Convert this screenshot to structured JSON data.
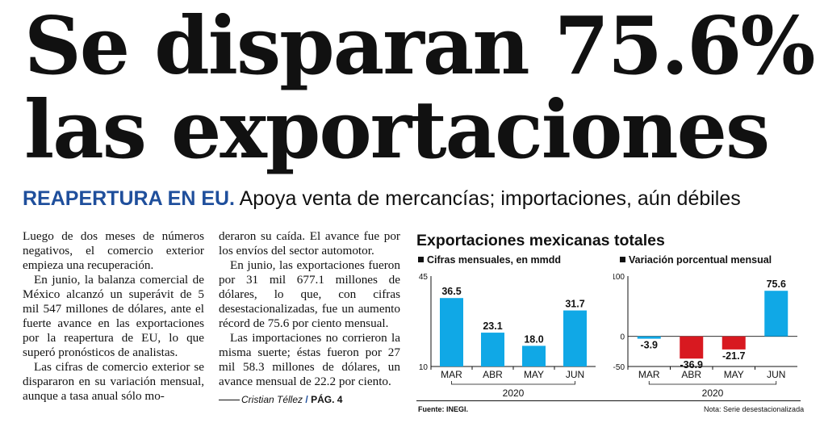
{
  "headline": {
    "line1": "Se disparan 75.6%",
    "line2": "las exportaciones"
  },
  "subhead": {
    "kicker": "REAPERTURA EN EU.",
    "dek": "Apoya venta de mercancías; importaciones, aún débiles"
  },
  "article": {
    "col1": [
      "Luego de dos meses de números negativos, el comercio exterior empieza una recuperación.",
      "En junio, la balanza comercial de México alcanzó un superávit de 5 mil 547 millones de dólares, ante el fuerte avance en las exportaciones por la reapertura de EU, lo que superó pronósticos de analistas.",
      "Las cifras de comercio exterior se dispararon en su variación mensual, aunque a tasa anual sólo mo-"
    ],
    "col2": [
      "deraron su caída. El avance fue por los envíos del sector automotor.",
      "En junio, las exportaciones fueron por 31 mil 677.1 millones de dólares, lo que, con cifras desestacionalizadas, fue un aumento récord de 75.6 por ciento mensual.",
      "Las importaciones no corrieron la misma suerte; éstas fueron por 27 mil 58.3 millones de dólares, un avance mensual de 22.2 por ciento."
    ],
    "author": "Cristian Téllez",
    "slash": "/",
    "page_ref": "PÁG. 4"
  },
  "graphic": {
    "title": "Exportaciones mexicanas totales",
    "source": "Fuente: INEGI.",
    "note": "Nota: Serie desestacionalizada"
  },
  "colors": {
    "bar_blue": "#10a8e6",
    "bar_red": "#d81920",
    "kicker_blue": "#1f4f9c"
  },
  "chart_data": [
    {
      "type": "bar",
      "title": "Cifras mensuales, en mmdd",
      "categories": [
        "MAR",
        "ABR",
        "MAY",
        "JUN"
      ],
      "values": [
        36.5,
        23.1,
        18.0,
        31.7
      ],
      "value_labels": [
        "36.5",
        "23.1",
        "18.0",
        "31.7"
      ],
      "ylim": [
        10,
        45
      ],
      "yticks": [
        "45",
        "10"
      ],
      "period_label": "2020",
      "color": "#10a8e6"
    },
    {
      "type": "bar",
      "title": "Variación porcentual mensual",
      "categories": [
        "MAR",
        "ABR",
        "MAY",
        "JUN"
      ],
      "values": [
        -3.9,
        -36.9,
        -21.7,
        75.6
      ],
      "value_labels": [
        "-3.9",
        "-36.9",
        "-21.7",
        "75.6"
      ],
      "ylim": [
        -50,
        100
      ],
      "yticks": [
        "100",
        "0",
        "-50"
      ],
      "period_label": "2020",
      "colors": [
        "#10a8e6",
        "#d81920",
        "#d81920",
        "#10a8e6"
      ]
    }
  ]
}
